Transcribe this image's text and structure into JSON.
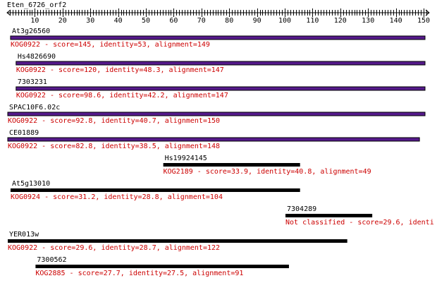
{
  "query": {
    "name": "Eten_6726_orf2",
    "length": 152
  },
  "ruler": {
    "labels": [
      "10",
      "20",
      "30",
      "40",
      "50",
      "60",
      "70",
      "80",
      "90",
      "100",
      "110",
      "120",
      "130",
      "140",
      "150"
    ]
  },
  "colors": {
    "bar_default": "#000000",
    "bar_highlight": "#551a8b",
    "annotation": "#cc0000"
  },
  "hits": [
    {
      "id": "At3g26560",
      "annotation": "KOG0922 - score=145, identity=53, alignment=149",
      "start": 2,
      "end": 150,
      "highlight": true
    },
    {
      "id": "Hs4826690",
      "annotation": "KOG0922 - score=120, identity=48.3, alignment=147",
      "start": 4,
      "end": 150,
      "highlight": true
    },
    {
      "id": "7303231",
      "annotation": "KOG0922 - score=98.6, identity=42.2, alignment=147",
      "start": 4,
      "end": 150,
      "highlight": true
    },
    {
      "id": "SPAC10F6.02c",
      "annotation": "KOG0922 - score=92.8, identity=40.7, alignment=150",
      "start": 1,
      "end": 150,
      "highlight": true
    },
    {
      "id": "CE01889",
      "annotation": "KOG0922 - score=82.8, identity=38.5, alignment=148",
      "start": 1,
      "end": 148,
      "highlight": true
    },
    {
      "id": "Hs19924145",
      "annotation": "KOG2189 - score=33.9, identity=40.8, alignment=49",
      "start": 57,
      "end": 105,
      "highlight": false
    },
    {
      "id": "At5g13010",
      "annotation": "KOG0924 - score=31.2, identity=28.8, alignment=104",
      "start": 2,
      "end": 105,
      "highlight": false
    },
    {
      "id": "7304289",
      "annotation": "Not classified - score=29.6, identi",
      "start": 101,
      "end": 131,
      "highlight": false
    },
    {
      "id": "YER013w",
      "annotation": "KOG0922 - score=29.6, identity=28.7, alignment=122",
      "start": 1,
      "end": 122,
      "highlight": false
    },
    {
      "id": "7300562",
      "annotation": "KOG2885 - score=27.7, identity=27.5, alignment=91",
      "start": 11,
      "end": 101,
      "highlight": false
    }
  ]
}
